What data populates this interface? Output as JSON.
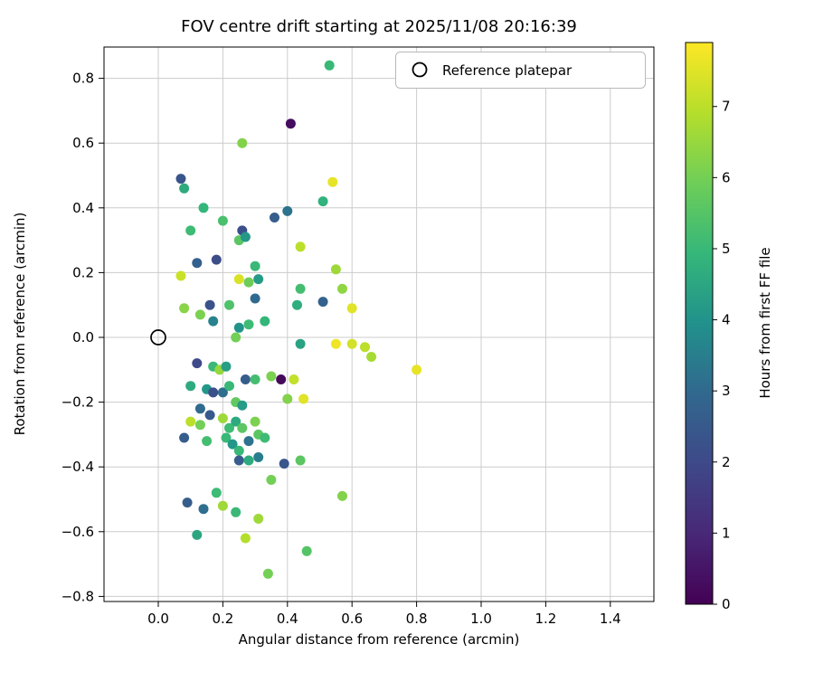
{
  "chart_data": {
    "type": "scatter",
    "title": "FOV centre drift starting at 2025/11/08 20:16:39",
    "xlabel": "Angular distance from reference (arcmin)",
    "ylabel": "Rotation from reference (arcmin)",
    "colorbar_label": "Hours from first FF file",
    "legend": {
      "label": "Reference platepar",
      "marker": "open-circle"
    },
    "grid": true,
    "xlim": [
      -0.17,
      1.54
    ],
    "ylim": [
      -0.815,
      0.9
    ],
    "xticks": {
      "values": [
        0.0,
        0.2,
        0.4,
        0.6,
        0.8,
        1.0,
        1.2,
        1.4
      ],
      "labels": [
        "0.0",
        "0.2",
        "0.4",
        "0.6",
        "0.8",
        "1.0",
        "1.2",
        "1.4"
      ]
    },
    "yticks": {
      "values": [
        -0.8,
        -0.6,
        -0.4,
        -0.2,
        0.0,
        0.2,
        0.4,
        0.6,
        0.8
      ],
      "labels": [
        "−0.8",
        "−0.6",
        "−0.4",
        "−0.2",
        "0.0",
        "0.2",
        "0.4",
        "0.6",
        "0.8"
      ]
    },
    "colorbar": {
      "vmin": 0,
      "vmax": 7.9,
      "ticks": [
        0,
        1,
        2,
        3,
        4,
        5,
        6,
        7
      ],
      "tick_labels": [
        "0",
        "1",
        "2",
        "3",
        "4",
        "5",
        "6",
        "7"
      ],
      "colormap": "viridis"
    },
    "reference_point": {
      "x": 0.0,
      "y": 0.0
    },
    "points": {
      "x": [
        0.53,
        0.41,
        0.26,
        0.54,
        0.07,
        0.08,
        0.4,
        0.51,
        0.14,
        0.1,
        0.2,
        0.25,
        0.26,
        0.36,
        0.27,
        0.44,
        0.3,
        0.25,
        0.31,
        0.07,
        0.55,
        0.12,
        0.18,
        0.28,
        0.3,
        0.43,
        0.44,
        0.51,
        0.57,
        0.6,
        0.16,
        0.17,
        0.13,
        0.22,
        0.25,
        0.24,
        0.28,
        0.33,
        0.08,
        0.44,
        0.55,
        0.6,
        0.64,
        0.66,
        0.8,
        0.12,
        0.17,
        0.19,
        0.21,
        0.27,
        0.3,
        0.35,
        0.38,
        0.42,
        0.45,
        0.4,
        0.1,
        0.15,
        0.17,
        0.2,
        0.22,
        0.24,
        0.26,
        0.13,
        0.16,
        0.1,
        0.13,
        0.2,
        0.22,
        0.24,
        0.26,
        0.3,
        0.21,
        0.08,
        0.15,
        0.23,
        0.25,
        0.28,
        0.31,
        0.33,
        0.25,
        0.28,
        0.31,
        0.39,
        0.44,
        0.35,
        0.57,
        0.09,
        0.18,
        0.2,
        0.14,
        0.24,
        0.31,
        0.12,
        0.27,
        0.46,
        0.34
      ],
      "y": [
        0.84,
        0.66,
        0.6,
        0.48,
        0.49,
        0.46,
        0.39,
        0.42,
        0.4,
        0.33,
        0.36,
        0.3,
        0.33,
        0.37,
        0.31,
        0.28,
        0.22,
        0.18,
        0.18,
        0.19,
        0.21,
        0.23,
        0.24,
        0.17,
        0.12,
        0.1,
        0.15,
        0.11,
        0.15,
        0.09,
        0.1,
        0.05,
        0.07,
        0.1,
        0.03,
        0.0,
        0.04,
        0.05,
        0.09,
        -0.02,
        -0.02,
        -0.02,
        -0.03,
        -0.06,
        -0.1,
        -0.08,
        -0.09,
        -0.1,
        -0.09,
        -0.13,
        -0.13,
        -0.12,
        -0.13,
        -0.13,
        -0.19,
        -0.19,
        -0.15,
        -0.16,
        -0.17,
        -0.17,
        -0.15,
        -0.2,
        -0.21,
        -0.22,
        -0.24,
        -0.26,
        -0.27,
        -0.25,
        -0.28,
        -0.26,
        -0.28,
        -0.26,
        -0.31,
        -0.31,
        -0.32,
        -0.33,
        -0.35,
        -0.32,
        -0.3,
        -0.31,
        -0.38,
        -0.38,
        -0.37,
        -0.39,
        -0.38,
        -0.44,
        -0.49,
        -0.51,
        -0.48,
        -0.52,
        -0.53,
        -0.54,
        -0.56,
        -0.61,
        -0.62,
        -0.66,
        -0.73
      ],
      "hours": [
        5.0,
        0.3,
        6.2,
        7.6,
        2.4,
        4.6,
        3.2,
        4.8,
        4.9,
        5.1,
        5.3,
        5.6,
        2.2,
        2.6,
        4.1,
        7.0,
        5.0,
        7.4,
        4.2,
        7.2,
        6.6,
        2.7,
        2.1,
        5.9,
        3.0,
        4.7,
        5.2,
        2.8,
        6.4,
        7.5,
        2.3,
        3.6,
        6.1,
        5.4,
        4.0,
        6.0,
        5.1,
        4.9,
        6.3,
        4.4,
        7.7,
        7.3,
        7.0,
        6.7,
        7.6,
        2.0,
        5.0,
        6.5,
        4.3,
        2.6,
        5.2,
        6.1,
        0.2,
        7.1,
        7.5,
        6.2,
        4.6,
        4.1,
        2.2,
        3.1,
        5.0,
        5.7,
        4.2,
        3.0,
        2.5,
        7.0,
        6.0,
        6.6,
        5.1,
        4.6,
        5.6,
        6.1,
        5.0,
        2.6,
        5.2,
        4.1,
        5.0,
        3.2,
        5.6,
        5.1,
        2.6,
        4.6,
        3.5,
        2.4,
        5.6,
        6.0,
        6.2,
        2.6,
        5.1,
        6.6,
        3.1,
        5.0,
        6.6,
        4.5,
        6.9,
        5.5,
        6.0
      ]
    }
  },
  "colors": {
    "viridis_stops": [
      "#440154",
      "#482878",
      "#3e4989",
      "#31688e",
      "#21918c",
      "#35b779",
      "#6ece58",
      "#b5de2b",
      "#fde725"
    ],
    "grid": "#cccccc",
    "axes_edge": "#000000",
    "legend_border": "#b9b9b9",
    "background": "#ffffff",
    "reference_marker_edge": "#000000"
  }
}
